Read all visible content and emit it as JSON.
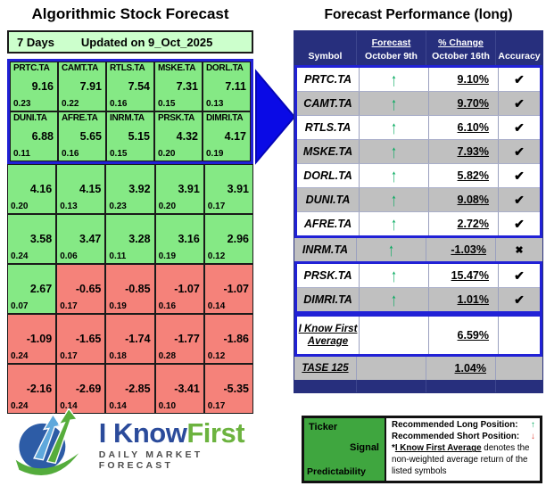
{
  "colors": {
    "navy_header": "#272F7D",
    "blue_box_border": "#2121D6",
    "arrow_blue": "#0A0AE6",
    "cell_green": "#85E985",
    "cell_red": "#F5827A",
    "pale_green_bar": "#CCFFCC",
    "zebra_gray": "#C0C0C0",
    "signal_up_green": "#00A95C",
    "signal_down_red": "#E03C31",
    "legend_green": "#3FA63F"
  },
  "left_panel": {
    "title": "Algorithmic Stock Forecast",
    "period": "7 Days",
    "updated": "Updated on 9_Oct_2025",
    "rows": [
      {
        "boxed": true,
        "cells": [
          {
            "ticker": "PRTC.TA",
            "signal": "9.16",
            "predictability": "0.23",
            "color": "green"
          },
          {
            "ticker": "CAMT.TA",
            "signal": "7.91",
            "predictability": "0.22",
            "color": "green"
          },
          {
            "ticker": "RTLS.TA",
            "signal": "7.54",
            "predictability": "0.16",
            "color": "green"
          },
          {
            "ticker": "MSKE.TA",
            "signal": "7.31",
            "predictability": "0.15",
            "color": "green"
          },
          {
            "ticker": "DORL.TA",
            "signal": "7.11",
            "predictability": "0.13",
            "color": "green"
          }
        ]
      },
      {
        "boxed": true,
        "cells": [
          {
            "ticker": "DUNI.TA",
            "signal": "6.88",
            "predictability": "0.11",
            "color": "green"
          },
          {
            "ticker": "AFRE.TA",
            "signal": "5.65",
            "predictability": "0.16",
            "color": "green"
          },
          {
            "ticker": "INRM.TA",
            "signal": "5.15",
            "predictability": "0.15",
            "color": "green"
          },
          {
            "ticker": "PRSK.TA",
            "signal": "4.32",
            "predictability": "0.20",
            "color": "green"
          },
          {
            "ticker": "DIMRI.TA",
            "signal": "4.17",
            "predictability": "0.19",
            "color": "green"
          }
        ]
      },
      {
        "boxed": false,
        "cells": [
          {
            "ticker": "",
            "signal": "4.16",
            "predictability": "0.20",
            "color": "green"
          },
          {
            "ticker": "",
            "signal": "4.15",
            "predictability": "0.13",
            "color": "green"
          },
          {
            "ticker": "",
            "signal": "3.92",
            "predictability": "0.23",
            "color": "green"
          },
          {
            "ticker": "",
            "signal": "3.91",
            "predictability": "0.20",
            "color": "green"
          },
          {
            "ticker": "",
            "signal": "3.91",
            "predictability": "0.17",
            "color": "green"
          }
        ]
      },
      {
        "boxed": false,
        "cells": [
          {
            "ticker": "",
            "signal": "3.58",
            "predictability": "0.24",
            "color": "green"
          },
          {
            "ticker": "",
            "signal": "3.47",
            "predictability": "0.06",
            "color": "green"
          },
          {
            "ticker": "",
            "signal": "3.28",
            "predictability": "0.11",
            "color": "green"
          },
          {
            "ticker": "",
            "signal": "3.16",
            "predictability": "0.19",
            "color": "green"
          },
          {
            "ticker": "",
            "signal": "2.96",
            "predictability": "0.12",
            "color": "green"
          }
        ]
      },
      {
        "boxed": false,
        "cells": [
          {
            "ticker": "",
            "signal": "2.67",
            "predictability": "0.07",
            "color": "green"
          },
          {
            "ticker": "",
            "signal": "-0.65",
            "predictability": "0.17",
            "color": "red"
          },
          {
            "ticker": "",
            "signal": "-0.85",
            "predictability": "0.19",
            "color": "red"
          },
          {
            "ticker": "",
            "signal": "-1.07",
            "predictability": "0.16",
            "color": "red"
          },
          {
            "ticker": "",
            "signal": "-1.07",
            "predictability": "0.14",
            "color": "red"
          }
        ]
      },
      {
        "boxed": false,
        "cells": [
          {
            "ticker": "",
            "signal": "-1.09",
            "predictability": "0.24",
            "color": "red"
          },
          {
            "ticker": "",
            "signal": "-1.65",
            "predictability": "0.17",
            "color": "red"
          },
          {
            "ticker": "",
            "signal": "-1.74",
            "predictability": "0.18",
            "color": "red"
          },
          {
            "ticker": "",
            "signal": "-1.77",
            "predictability": "0.28",
            "color": "red"
          },
          {
            "ticker": "",
            "signal": "-1.86",
            "predictability": "0.12",
            "color": "red"
          }
        ]
      },
      {
        "boxed": false,
        "cells": [
          {
            "ticker": "",
            "signal": "-2.16",
            "predictability": "0.24",
            "color": "red"
          },
          {
            "ticker": "",
            "signal": "-2.69",
            "predictability": "0.14",
            "color": "red"
          },
          {
            "ticker": "",
            "signal": "-2.85",
            "predictability": "0.14",
            "color": "red"
          },
          {
            "ticker": "",
            "signal": "-3.41",
            "predictability": "0.10",
            "color": "red"
          },
          {
            "ticker": "",
            "signal": "-5.35",
            "predictability": "0.17",
            "color": "red"
          }
        ]
      }
    ]
  },
  "right_panel": {
    "title": "Forecast Performance (long)",
    "header": {
      "symbol": "Symbol",
      "forecast_top": "Forecast",
      "forecast_bottom": "October 9th",
      "change_top": "% Change",
      "change_bottom": "October 16th",
      "accuracy": "Accuracy"
    },
    "groups": [
      {
        "boxed": true,
        "rows": [
          {
            "symbol": "PRTC.TA",
            "forecast": "up",
            "change": "9.10%",
            "accuracy": "check"
          },
          {
            "symbol": "CAMT.TA",
            "forecast": "up",
            "change": "9.70%",
            "accuracy": "check"
          },
          {
            "symbol": "RTLS.TA",
            "forecast": "up",
            "change": "6.10%",
            "accuracy": "check"
          },
          {
            "symbol": "MSKE.TA",
            "forecast": "up",
            "change": "7.93%",
            "accuracy": "check"
          },
          {
            "symbol": "DORL.TA",
            "forecast": "up",
            "change": "5.82%",
            "accuracy": "check"
          },
          {
            "symbol": "DUNI.TA",
            "forecast": "up",
            "change": "9.08%",
            "accuracy": "check"
          },
          {
            "symbol": "AFRE.TA",
            "forecast": "up",
            "change": "2.72%",
            "accuracy": "check"
          }
        ]
      },
      {
        "boxed": false,
        "rows": [
          {
            "symbol": "INRM.TA",
            "forecast": "up",
            "change": "-1.03%",
            "accuracy": "cross"
          }
        ]
      },
      {
        "boxed": true,
        "rows": [
          {
            "symbol": "PRSK.TA",
            "forecast": "up",
            "change": "15.47%",
            "accuracy": "check"
          },
          {
            "symbol": "DIMRI.TA",
            "forecast": "up",
            "change": "1.01%",
            "accuracy": "check"
          }
        ]
      },
      {
        "boxed": true,
        "rows": [
          {
            "symbol": "I Know First\nAverage",
            "forecast": "",
            "change": "6.59%",
            "accuracy": "",
            "underline": true,
            "tall": true
          }
        ]
      },
      {
        "boxed": false,
        "rows": [
          {
            "symbol": "TASE 125",
            "forecast": "",
            "change": "1.04%",
            "accuracy": "",
            "underline": true
          }
        ]
      }
    ]
  },
  "legend": {
    "ticker_label": "Ticker",
    "signal_label": "Signal",
    "predictability_label": "Predictability",
    "long_label": "Recommended Long Position:",
    "short_label": "Recommended Short Position:",
    "note_prefix": "*",
    "note_underline": "I Know First Average",
    "note_rest": " denotes the non-weighted average return of the listed symbols"
  },
  "logo": {
    "word1": "I Know",
    "word2": "First",
    "tagline": "DAILY MARKET FORECAST"
  },
  "chart_data": [
    {
      "type": "table",
      "title": "Algorithmic Stock Forecast",
      "subtitle": "7 Days / Updated on 9_Oct_2025",
      "columns": [
        "ticker",
        "signal",
        "predictability"
      ],
      "rows": [
        [
          "PRTC.TA",
          9.16,
          0.23
        ],
        [
          "CAMT.TA",
          7.91,
          0.22
        ],
        [
          "RTLS.TA",
          7.54,
          0.16
        ],
        [
          "MSKE.TA",
          7.31,
          0.15
        ],
        [
          "DORL.TA",
          7.11,
          0.13
        ],
        [
          "DUNI.TA",
          6.88,
          0.11
        ],
        [
          "AFRE.TA",
          5.65,
          0.16
        ],
        [
          "INRM.TA",
          5.15,
          0.15
        ],
        [
          "PRSK.TA",
          4.32,
          0.2
        ],
        [
          "DIMRI.TA",
          4.17,
          0.19
        ],
        [
          "",
          4.16,
          0.2
        ],
        [
          "",
          4.15,
          0.13
        ],
        [
          "",
          3.92,
          0.23
        ],
        [
          "",
          3.91,
          0.2
        ],
        [
          "",
          3.91,
          0.17
        ],
        [
          "",
          3.58,
          0.24
        ],
        [
          "",
          3.47,
          0.06
        ],
        [
          "",
          3.28,
          0.11
        ],
        [
          "",
          3.16,
          0.19
        ],
        [
          "",
          2.96,
          0.12
        ],
        [
          "",
          2.67,
          0.07
        ],
        [
          "",
          -0.65,
          0.17
        ],
        [
          "",
          -0.85,
          0.19
        ],
        [
          "",
          -1.07,
          0.16
        ],
        [
          "",
          -1.07,
          0.14
        ],
        [
          "",
          -1.09,
          0.24
        ],
        [
          "",
          -1.65,
          0.17
        ],
        [
          "",
          -1.74,
          0.18
        ],
        [
          "",
          -1.77,
          0.28
        ],
        [
          "",
          -1.86,
          0.12
        ],
        [
          "",
          -2.16,
          0.24
        ],
        [
          "",
          -2.69,
          0.14
        ],
        [
          "",
          -2.85,
          0.14
        ],
        [
          "",
          -3.41,
          0.1
        ],
        [
          "",
          -5.35,
          0.17
        ]
      ]
    },
    {
      "type": "table",
      "title": "Forecast Performance (long)",
      "columns": [
        "Symbol",
        "Forecast October 9th",
        "% Change October 16th",
        "Accuracy"
      ],
      "rows": [
        [
          "PRTC.TA",
          "up",
          "9.10%",
          "correct"
        ],
        [
          "CAMT.TA",
          "up",
          "9.70%",
          "correct"
        ],
        [
          "RTLS.TA",
          "up",
          "6.10%",
          "correct"
        ],
        [
          "MSKE.TA",
          "up",
          "7.93%",
          "correct"
        ],
        [
          "DORL.TA",
          "up",
          "5.82%",
          "correct"
        ],
        [
          "DUNI.TA",
          "up",
          "9.08%",
          "correct"
        ],
        [
          "AFRE.TA",
          "up",
          "2.72%",
          "correct"
        ],
        [
          "INRM.TA",
          "up",
          "-1.03%",
          "incorrect"
        ],
        [
          "PRSK.TA",
          "up",
          "15.47%",
          "correct"
        ],
        [
          "DIMRI.TA",
          "up",
          "1.01%",
          "correct"
        ],
        [
          "I Know First Average",
          "",
          "6.59%",
          ""
        ],
        [
          "TASE 125",
          "",
          "1.04%",
          ""
        ]
      ]
    }
  ]
}
